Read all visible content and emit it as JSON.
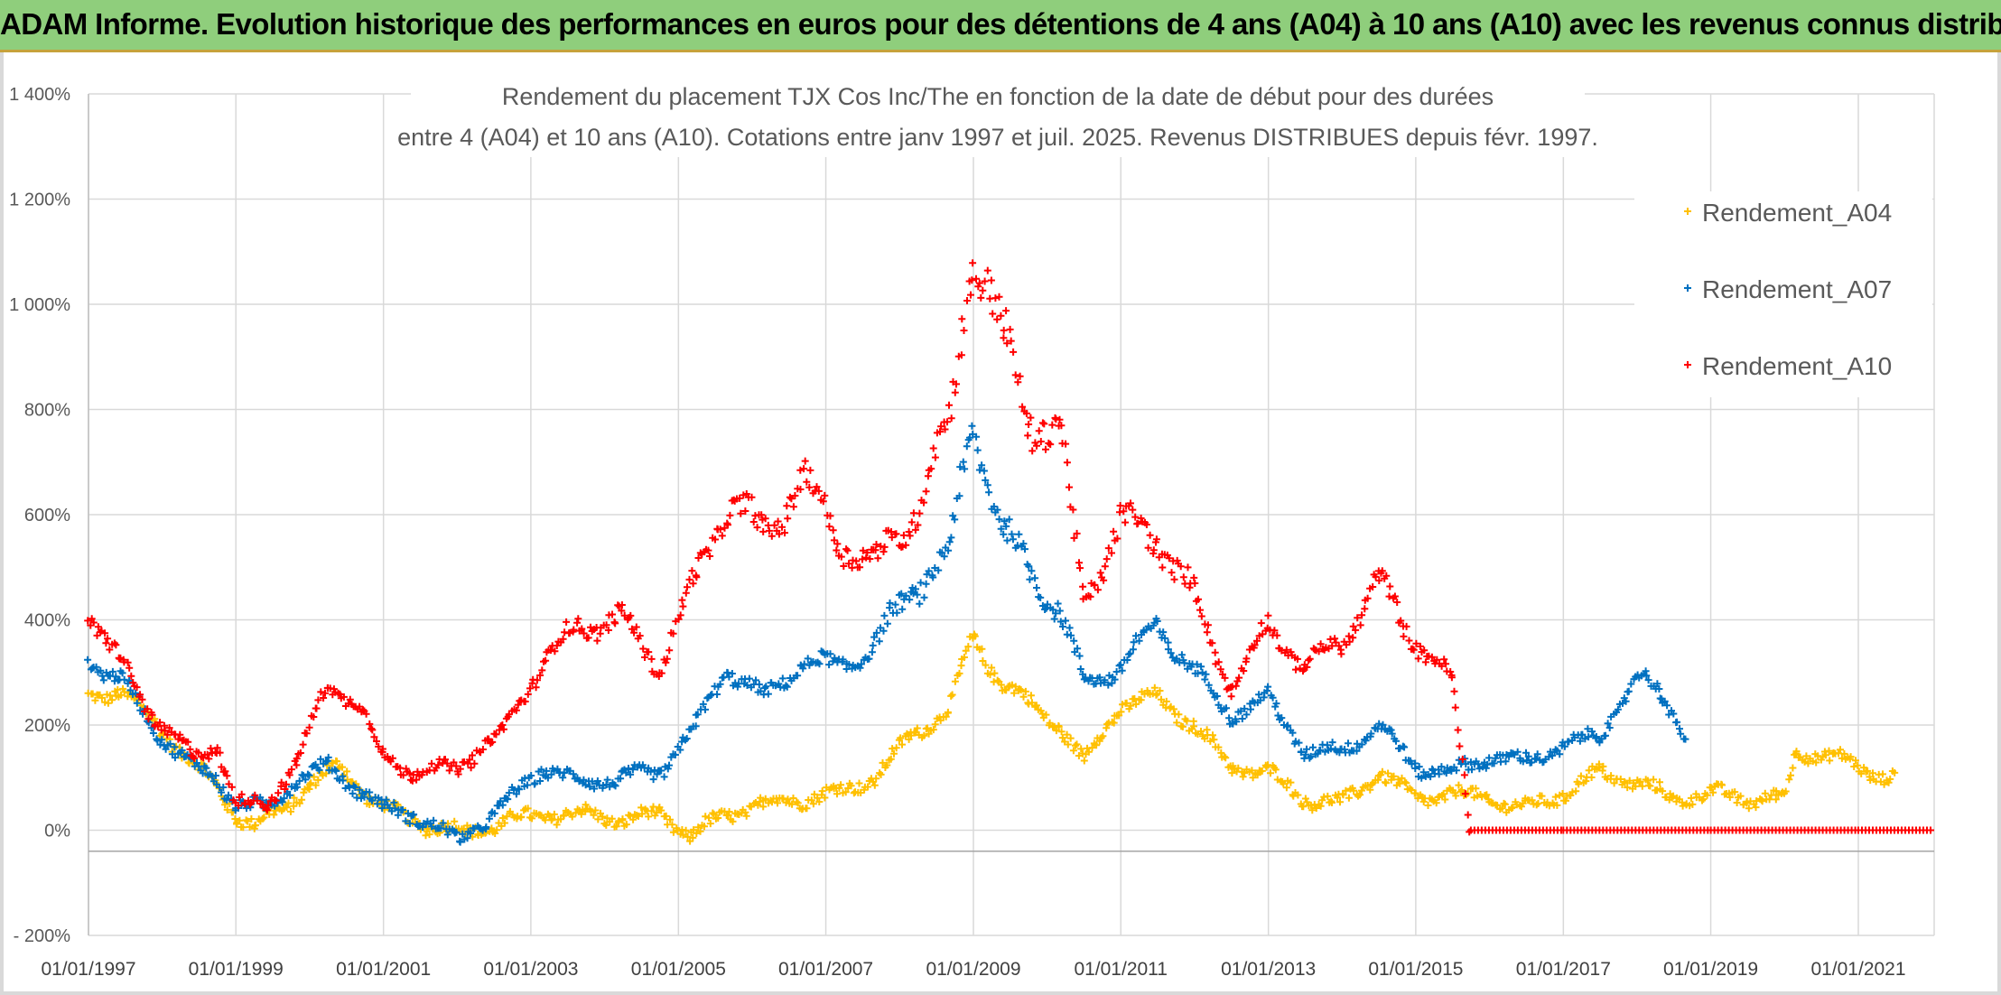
{
  "banner": {
    "title": "ADAM Informe. Evolution historique des performances en euros pour des détentions de 4 ans (A04) à 10 ans (A10) avec les revenus connus distribués"
  },
  "chart_data": {
    "type": "scatter",
    "title_line1": "Rendement du placement TJX Cos Inc/The en fonction de la date de début pour des durées",
    "title_line2": "entre 4 (A04) et 10 ans (A10). Cotations entre janv 1997 et juil. 2025. Revenus DISTRIBUES depuis févr. 1997.",
    "xlabel": "",
    "ylabel": "",
    "x_ticks": [
      "01/01/1997",
      "01/01/1999",
      "01/01/2001",
      "01/01/2003",
      "01/01/2005",
      "01/01/2007",
      "01/01/2009",
      "01/01/2011",
      "01/01/2013",
      "01/01/2015",
      "01/01/2017",
      "01/01/2019",
      "01/01/2021"
    ],
    "x_range": [
      "1997-01-01",
      "2022-01-01"
    ],
    "y_ticks": [
      "- 200%",
      "0%",
      "200%",
      "400%",
      "600%",
      "800%",
      "1 000%",
      "1 200%",
      "1 400%"
    ],
    "ylim": [
      -200,
      1400
    ],
    "grid": true,
    "legend_position": "top-right",
    "marker": "+",
    "series": [
      {
        "name": "Rendement_A04",
        "color": "#ffc000",
        "points": [
          [
            "1997-01-01",
            250
          ],
          [
            "1997-06-01",
            270
          ],
          [
            "1997-12-01",
            200
          ],
          [
            "1998-06-01",
            130
          ],
          [
            "1998-10-01",
            80
          ],
          [
            "1999-01-01",
            30
          ],
          [
            "1999-04-01",
            10
          ],
          [
            "1999-09-01",
            40
          ],
          [
            "2000-01-01",
            90
          ],
          [
            "2000-06-01",
            120
          ],
          [
            "2000-11-01",
            60
          ],
          [
            "2001-03-01",
            30
          ],
          [
            "2001-08-01",
            10
          ],
          [
            "2002-03-01",
            -5
          ],
          [
            "2002-10-01",
            20
          ],
          [
            "2003-04-01",
            30
          ],
          [
            "2003-10-01",
            30
          ],
          [
            "2004-04-01",
            20
          ],
          [
            "2004-10-01",
            30
          ],
          [
            "2005-03-01",
            -10
          ],
          [
            "2005-09-01",
            30
          ],
          [
            "2006-03-01",
            50
          ],
          [
            "2006-09-01",
            60
          ],
          [
            "2007-03-01",
            70
          ],
          [
            "2007-09-01",
            100
          ],
          [
            "2008-03-01",
            180
          ],
          [
            "2008-09-01",
            230
          ],
          [
            "2009-01-01",
            360
          ],
          [
            "2009-06-01",
            280
          ],
          [
            "2009-10-01",
            240
          ],
          [
            "2010-03-01",
            200
          ],
          [
            "2010-07-01",
            130
          ],
          [
            "2011-01-01",
            240
          ],
          [
            "2011-07-01",
            250
          ],
          [
            "2012-01-01",
            200
          ],
          [
            "2012-07-01",
            120
          ],
          [
            "2013-01-01",
            110
          ],
          [
            "2013-07-01",
            60
          ],
          [
            "2014-01-01",
            50
          ],
          [
            "2014-07-01",
            110
          ],
          [
            "2015-01-01",
            60
          ],
          [
            "2015-07-01",
            70
          ],
          [
            "2016-01-01",
            60
          ],
          [
            "2016-07-01",
            40
          ],
          [
            "2017-01-01",
            70
          ],
          [
            "2017-07-01",
            110
          ],
          [
            "2018-01-01",
            90
          ],
          [
            "2018-07-01",
            60
          ],
          [
            "2019-01-01",
            70
          ],
          [
            "2019-07-01",
            60
          ],
          [
            "2020-01-01",
            60
          ],
          [
            "2020-03-01",
            150
          ],
          [
            "2020-09-01",
            140
          ],
          [
            "2021-03-01",
            110
          ],
          [
            "2021-07-01",
            100
          ]
        ]
      },
      {
        "name": "Rendement_A07",
        "color": "#0070c0",
        "points": [
          [
            "1997-01-01",
            330
          ],
          [
            "1997-06-01",
            290
          ],
          [
            "1997-12-01",
            190
          ],
          [
            "1998-06-01",
            120
          ],
          [
            "1998-10-01",
            100
          ],
          [
            "1999-01-01",
            50
          ],
          [
            "1999-06-01",
            40
          ],
          [
            "1999-11-01",
            100
          ],
          [
            "2000-04-01",
            120
          ],
          [
            "2000-09-01",
            80
          ],
          [
            "2001-01-01",
            40
          ],
          [
            "2001-06-01",
            30
          ],
          [
            "2002-01-01",
            -20
          ],
          [
            "2002-08-01",
            40
          ],
          [
            "2003-03-01",
            120
          ],
          [
            "2003-09-01",
            90
          ],
          [
            "2004-04-01",
            100
          ],
          [
            "2004-10-01",
            110
          ],
          [
            "2005-04-01",
            200
          ],
          [
            "2005-09-01",
            310
          ],
          [
            "2006-03-01",
            250
          ],
          [
            "2006-09-01",
            320
          ],
          [
            "2007-03-01",
            310
          ],
          [
            "2007-09-01",
            350
          ],
          [
            "2008-03-01",
            460
          ],
          [
            "2008-09-01",
            520
          ],
          [
            "2009-01-01",
            780
          ],
          [
            "2009-06-01",
            560
          ],
          [
            "2009-10-01",
            500
          ],
          [
            "2010-03-01",
            420
          ],
          [
            "2010-07-01",
            280
          ],
          [
            "2011-01-01",
            310
          ],
          [
            "2011-07-01",
            390
          ],
          [
            "2012-01-01",
            300
          ],
          [
            "2012-07-01",
            220
          ],
          [
            "2013-01-01",
            250
          ],
          [
            "2013-07-01",
            150
          ],
          [
            "2014-01-01",
            150
          ],
          [
            "2014-07-01",
            200
          ],
          [
            "2015-01-01",
            120
          ],
          [
            "2015-07-01",
            110
          ],
          [
            "2016-01-01",
            140
          ],
          [
            "2016-07-01",
            130
          ],
          [
            "2017-01-01",
            160
          ],
          [
            "2017-07-01",
            180
          ],
          [
            "2018-01-01",
            290
          ],
          [
            "2018-05-01",
            260
          ],
          [
            "2018-09-01",
            180
          ]
        ]
      },
      {
        "name": "Rendement_A10",
        "color": "#ff0000",
        "points": [
          [
            "1997-01-01",
            420
          ],
          [
            "1997-06-01",
            320
          ],
          [
            "1997-12-01",
            210
          ],
          [
            "1998-06-01",
            140
          ],
          [
            "1998-10-01",
            160
          ],
          [
            "1999-01-01",
            50
          ],
          [
            "1999-06-01",
            50
          ],
          [
            "1999-11-01",
            130
          ],
          [
            "2000-04-01",
            280
          ],
          [
            "2000-09-01",
            240
          ],
          [
            "2001-01-01",
            140
          ],
          [
            "2001-06-01",
            110
          ],
          [
            "2002-01-01",
            120
          ],
          [
            "2002-08-01",
            180
          ],
          [
            "2003-03-01",
            320
          ],
          [
            "2003-09-01",
            390
          ],
          [
            "2004-04-01",
            400
          ],
          [
            "2004-10-01",
            310
          ],
          [
            "2005-04-01",
            480
          ],
          [
            "2005-09-01",
            630
          ],
          [
            "2006-03-01",
            560
          ],
          [
            "2006-09-01",
            670
          ],
          [
            "2007-03-01",
            560
          ],
          [
            "2007-09-01",
            500
          ],
          [
            "2008-03-01",
            600
          ],
          [
            "2008-09-01",
            760
          ],
          [
            "2009-01-01",
            1130
          ],
          [
            "2009-06-01",
            920
          ],
          [
            "2009-10-01",
            790
          ],
          [
            "2010-03-01",
            760
          ],
          [
            "2010-07-01",
            440
          ],
          [
            "2011-01-01",
            580
          ],
          [
            "2011-07-01",
            560
          ],
          [
            "2012-01-01",
            440
          ],
          [
            "2012-07-01",
            270
          ],
          [
            "2013-01-01",
            390
          ],
          [
            "2013-07-01",
            310
          ],
          [
            "2014-01-01",
            360
          ],
          [
            "2014-07-01",
            470
          ],
          [
            "2015-01-01",
            360
          ],
          [
            "2015-07-01",
            280
          ],
          [
            "2015-10-01",
            0
          ],
          [
            "2017-01-01",
            0
          ],
          [
            "2019-01-01",
            0
          ],
          [
            "2021-01-01",
            0
          ],
          [
            "2022-01-01",
            0
          ]
        ]
      }
    ]
  }
}
